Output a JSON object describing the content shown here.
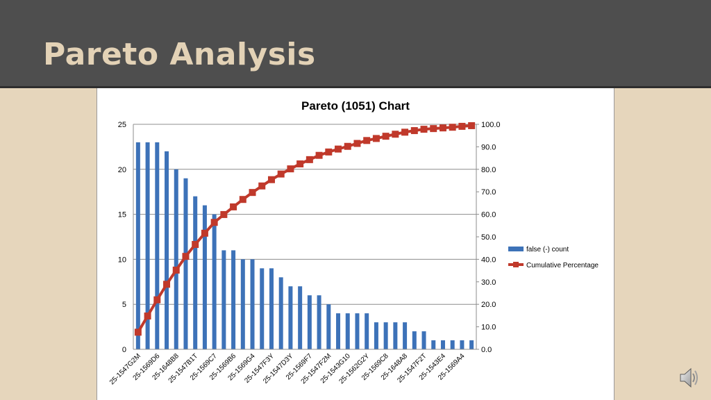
{
  "slide": {
    "title": "Pareto Analysis",
    "speaker_icon": "speaker-icon"
  },
  "colors": {
    "bar": "#3d72b8",
    "line": "#c0392b",
    "marker": "#c0392b",
    "title_bar": "#4e4e4e",
    "title_text": "#e3d2b6",
    "slide_background": "#e6d6bc"
  },
  "chart_data": {
    "type": "bar",
    "title": "Pareto (1051) Chart",
    "xlabel": "",
    "ylabel": "",
    "ylim": [
      0,
      25
    ],
    "y2lim": [
      0,
      100
    ],
    "yticks": [
      "0",
      "5",
      "10",
      "15",
      "20",
      "25"
    ],
    "y2ticks": [
      "0.0",
      "10.0",
      "20.0",
      "30.0",
      "40.0",
      "50.0",
      "60.0",
      "70.0",
      "80.0",
      "90.0",
      "100.0"
    ],
    "grid": true,
    "legend_position": "right",
    "categories": [
      "25-1547G2M",
      "",
      "25-1569D6",
      "",
      "25-1648B8",
      "",
      "25-1547B1T",
      "",
      "25-1569C7",
      "",
      "25-1569B6",
      "",
      "25-1569G4",
      "",
      "25-1547F3Y",
      "",
      "25-1547D3Y",
      "",
      "25-1569F7",
      "",
      "25-1547F2M",
      "",
      "25-1543G10",
      "",
      "25-1562G2Y",
      "",
      "25-1569C8",
      "",
      "25-1648A8",
      "",
      "25-1547F2T",
      "",
      "25-1543E4",
      "",
      "25-1569A4",
      ""
    ],
    "series": [
      {
        "name": "false (-) count",
        "type": "bar",
        "axis": "left",
        "values": [
          23,
          23,
          23,
          22,
          20,
          19,
          17,
          16,
          15,
          11,
          11,
          10,
          10,
          9,
          9,
          8,
          7,
          7,
          6,
          6,
          5,
          4,
          4,
          4,
          4,
          3,
          3,
          3,
          3,
          2,
          2,
          1,
          1,
          1,
          1,
          1
        ]
      },
      {
        "name": "Cumulative Percentage",
        "type": "line",
        "axis": "right",
        "values": [
          7.6,
          14.8,
          22.0,
          28.9,
          35.2,
          41.3,
          46.6,
          51.6,
          56.4,
          59.9,
          63.3,
          66.6,
          69.7,
          72.6,
          75.4,
          77.9,
          80.2,
          82.4,
          84.3,
          86.2,
          87.7,
          89.0,
          90.2,
          91.5,
          92.8,
          93.7,
          94.7,
          95.6,
          96.5,
          97.2,
          97.8,
          98.1,
          98.4,
          98.7,
          99.1,
          99.4
        ]
      }
    ]
  }
}
